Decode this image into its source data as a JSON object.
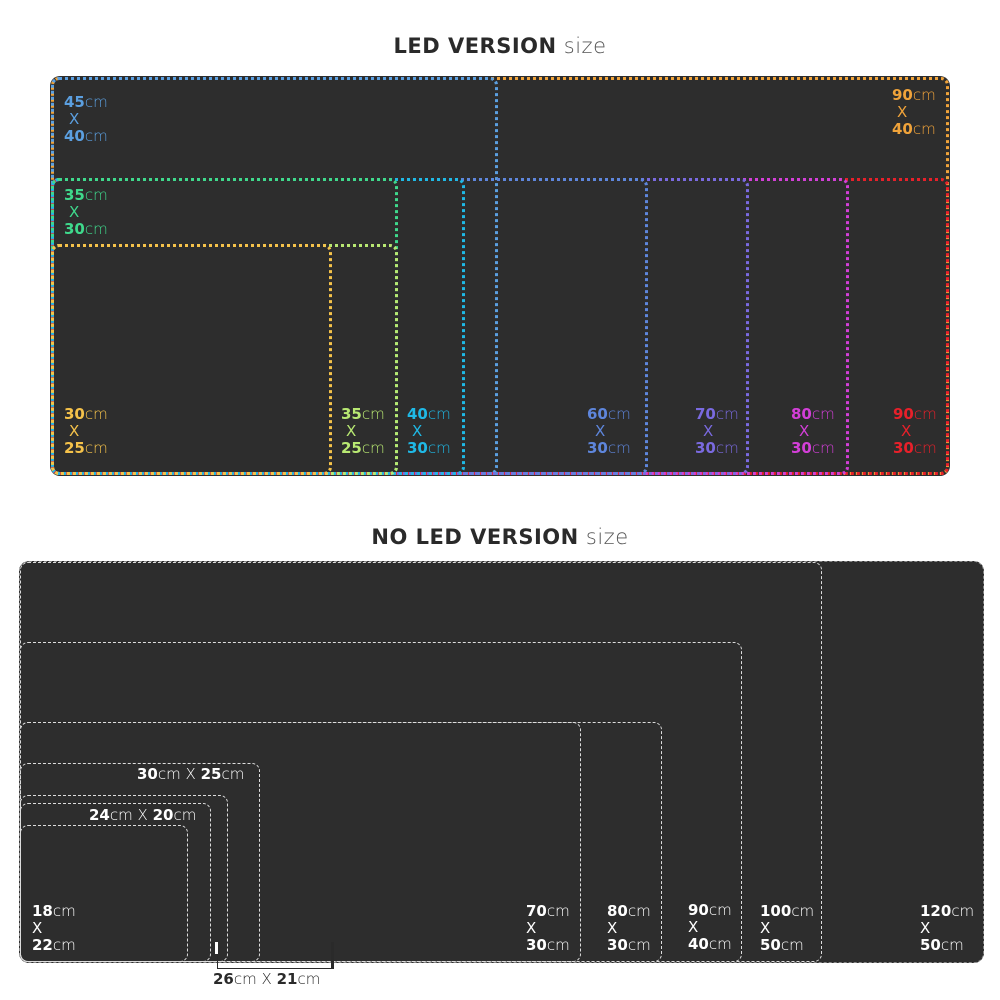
{
  "led": {
    "title_bold": "LED VERSION",
    "title_light": "size",
    "sizes": [
      {
        "a": "45",
        "b": "40",
        "color": "#5b9fe0"
      },
      {
        "a": "90",
        "b": "40",
        "color": "#f0a33a"
      },
      {
        "a": "35",
        "b": "30",
        "color": "#3fd98c"
      },
      {
        "a": "40",
        "b": "30",
        "color": "#1fb9e6"
      },
      {
        "a": "30",
        "b": "25",
        "color": "#f5c24a"
      },
      {
        "a": "35",
        "b": "25",
        "color": "#b8e872"
      },
      {
        "a": "60",
        "b": "30",
        "color": "#5e86dc"
      },
      {
        "a": "70",
        "b": "30",
        "color": "#7a6ae0"
      },
      {
        "a": "80",
        "b": "30",
        "color": "#d33fd8"
      },
      {
        "a": "90",
        "b": "30",
        "color": "#e8202a"
      }
    ]
  },
  "noled": {
    "title_bold": "NO LED VERSION",
    "title_light": "size",
    "sizes": [
      {
        "a": "120",
        "b": "50"
      },
      {
        "a": "100",
        "b": "50"
      },
      {
        "a": "90",
        "b": "40"
      },
      {
        "a": "80",
        "b": "30"
      },
      {
        "a": "70",
        "b": "30"
      },
      {
        "a": "30",
        "b": "25"
      },
      {
        "a": "26",
        "b": "21"
      },
      {
        "a": "24",
        "b": "20"
      },
      {
        "a": "18",
        "b": "22"
      }
    ]
  },
  "unit": "cm",
  "x": "X"
}
